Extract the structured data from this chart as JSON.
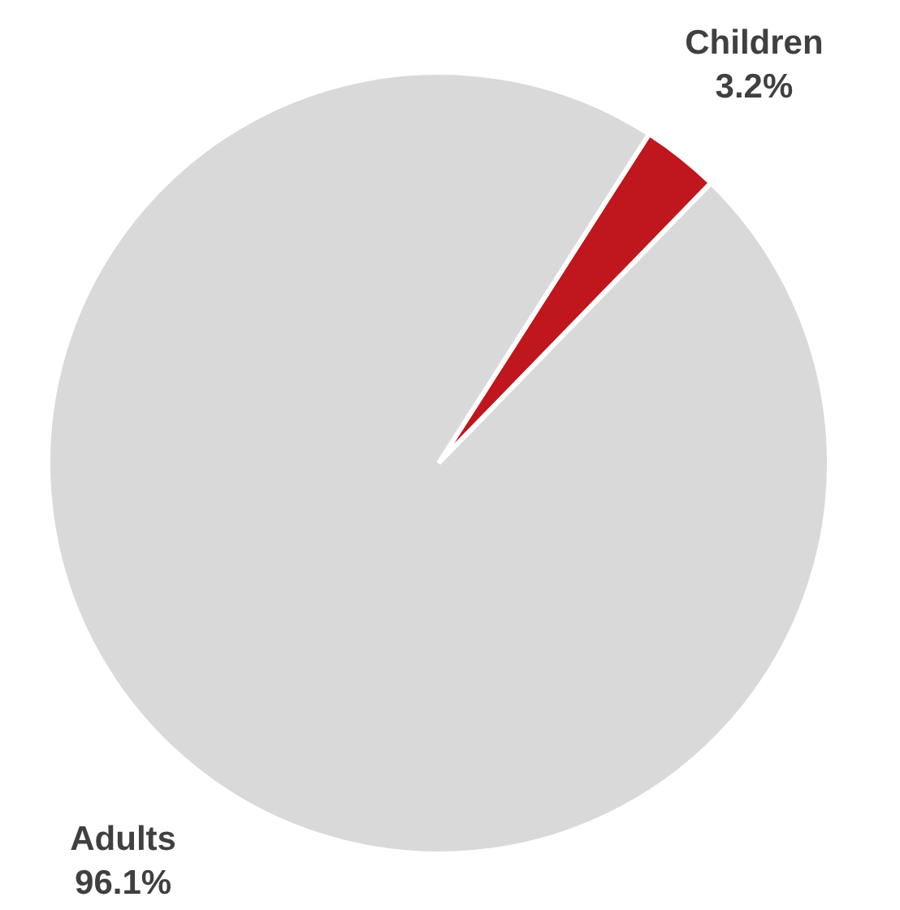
{
  "chart_data": {
    "type": "pie",
    "categories": [
      "Children",
      "Adults"
    ],
    "values": [
      3.2,
      96.1
    ],
    "colors": [
      "#c0161d",
      "#d9d9d9"
    ],
    "value_labels": [
      "3.2%",
      "96.1%"
    ],
    "legend": false
  }
}
